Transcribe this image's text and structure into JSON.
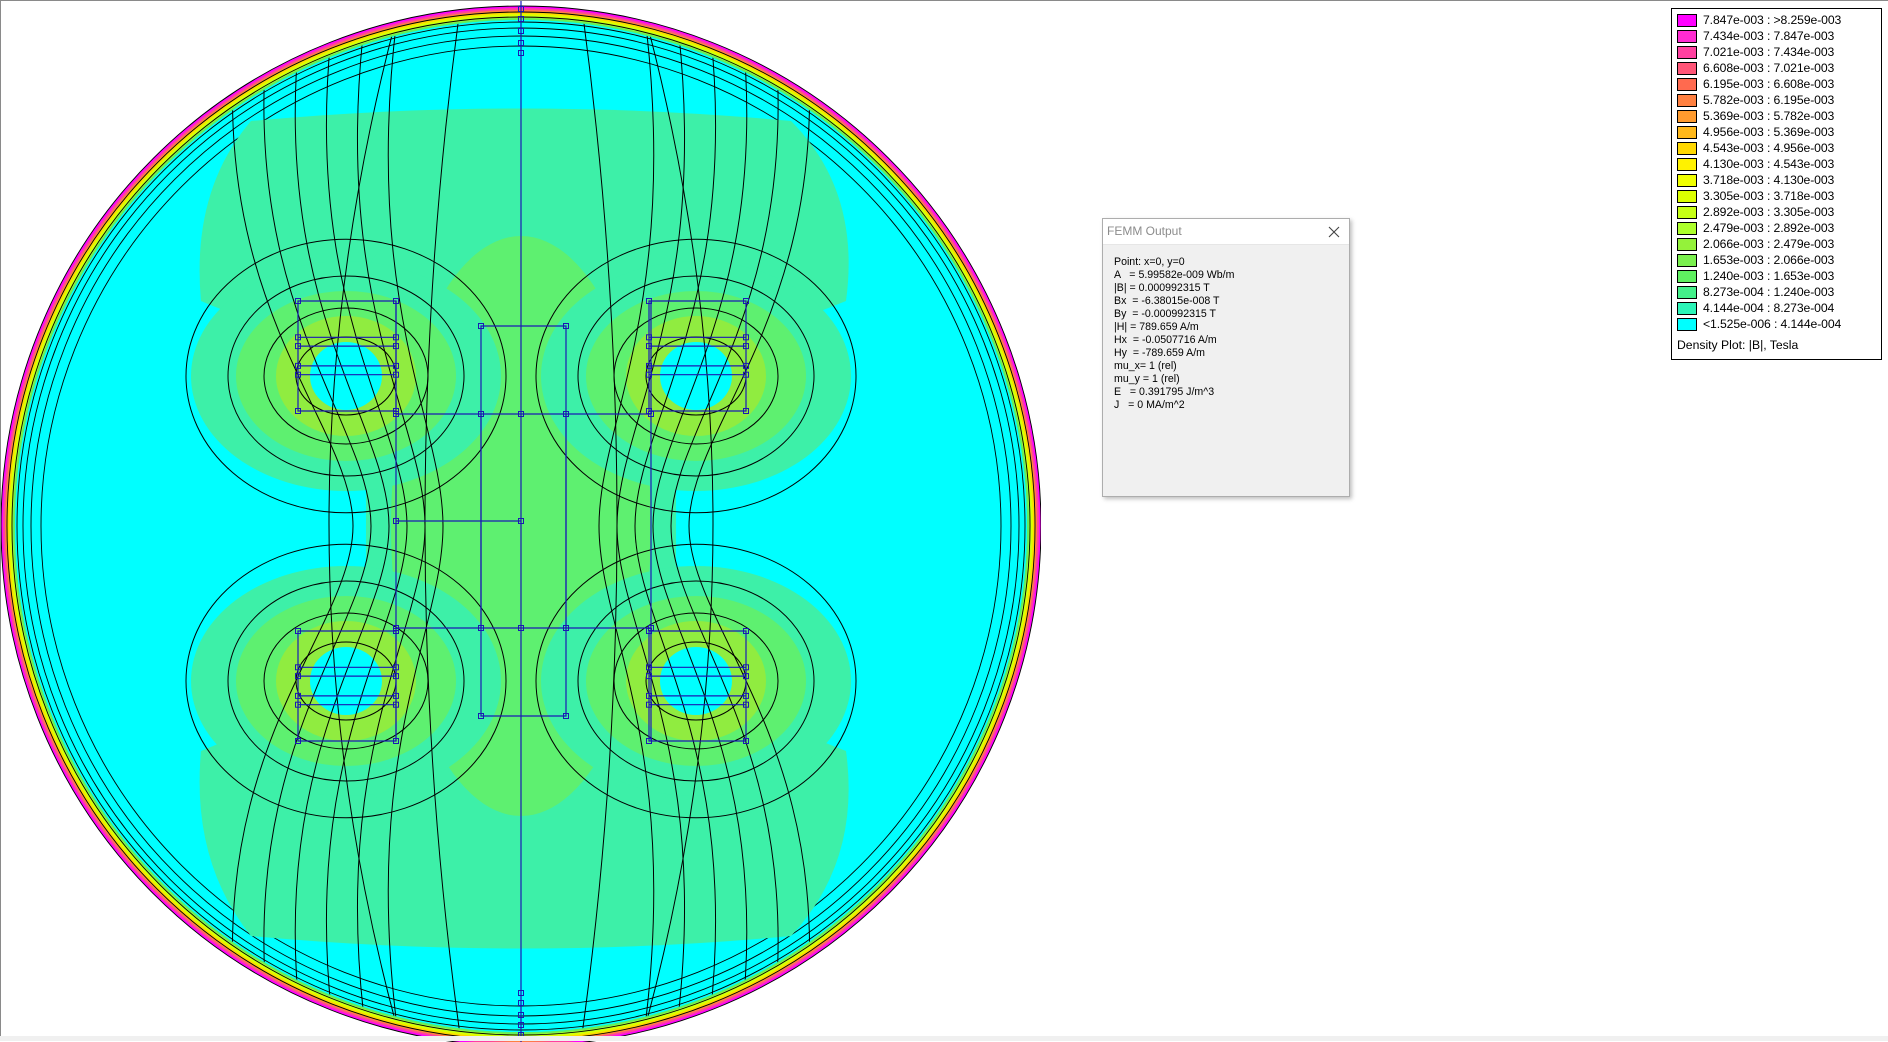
{
  "window": {
    "title": "FEMM Output",
    "close_icon": "close-icon",
    "lines": [
      "Point: x=0, y=0",
      "A   = 5.99582e-009 Wb/m",
      "|B| = 0.000992315 T",
      "Bx  = -6.38015e-008 T",
      "By  = -0.000992315 T",
      "|H| = 789.659 A/m",
      "Hx  = -0.0507716 A/m",
      "Hy  = -789.659 A/m",
      "mu_x= 1 (rel)",
      "mu_y = 1 (rel)",
      "E   = 0.391795 J/m^3",
      "J   = 0 MA/m^2"
    ]
  },
  "legend": {
    "caption": "Density Plot: |B|, Tesla",
    "entries": [
      {
        "range": "7.847e-003 : >8.259e-003",
        "color": "#ff00ff"
      },
      {
        "range": "7.434e-003 : 7.847e-003",
        "color": "#ff2bd1"
      },
      {
        "range": "7.021e-003 : 7.434e-003",
        "color": "#ff40a0"
      },
      {
        "range": "6.608e-003 : 7.021e-003",
        "color": "#ff5577"
      },
      {
        "range": "6.195e-003 : 6.608e-003",
        "color": "#ff6a4f"
      },
      {
        "range": "5.782e-003 : 6.195e-003",
        "color": "#ff8040"
      },
      {
        "range": "5.369e-003 : 5.782e-003",
        "color": "#ff9b2e"
      },
      {
        "range": "4.956e-003 : 5.369e-003",
        "color": "#ffb81a"
      },
      {
        "range": "4.543e-003 : 4.956e-003",
        "color": "#ffd800"
      },
      {
        "range": "4.130e-003 : 4.543e-003",
        "color": "#fff200"
      },
      {
        "range": "3.718e-003 : 4.130e-003",
        "color": "#f0ff00"
      },
      {
        "range": "3.305e-003 : 3.718e-003",
        "color": "#dcff00"
      },
      {
        "range": "2.892e-003 : 3.305e-003",
        "color": "#c6ff15"
      },
      {
        "range": "2.479e-003 : 2.892e-003",
        "color": "#adff2b"
      },
      {
        "range": "2.066e-003 : 2.479e-003",
        "color": "#94f23a"
      },
      {
        "range": "1.653e-003 : 2.066e-003",
        "color": "#7af04e"
      },
      {
        "range": "1.240e-003 : 1.653e-003",
        "color": "#5ff060"
      },
      {
        "range": "8.273e-004 : 1.240e-003",
        "color": "#44f08a"
      },
      {
        "range": "4.144e-004 : 8.273e-004",
        "color": "#2cf5b8"
      },
      {
        "range": "<1.525e-006 : 4.144e-004",
        "color": "#00ffff"
      }
    ]
  },
  "plot": {
    "colors": {
      "background": "#00ffff",
      "low_field": "#3df0a8",
      "mid_field": "#5ef070",
      "high_field": "#90ec40",
      "flux_line": "#000000",
      "geometry": "#1a1ab4"
    }
  }
}
